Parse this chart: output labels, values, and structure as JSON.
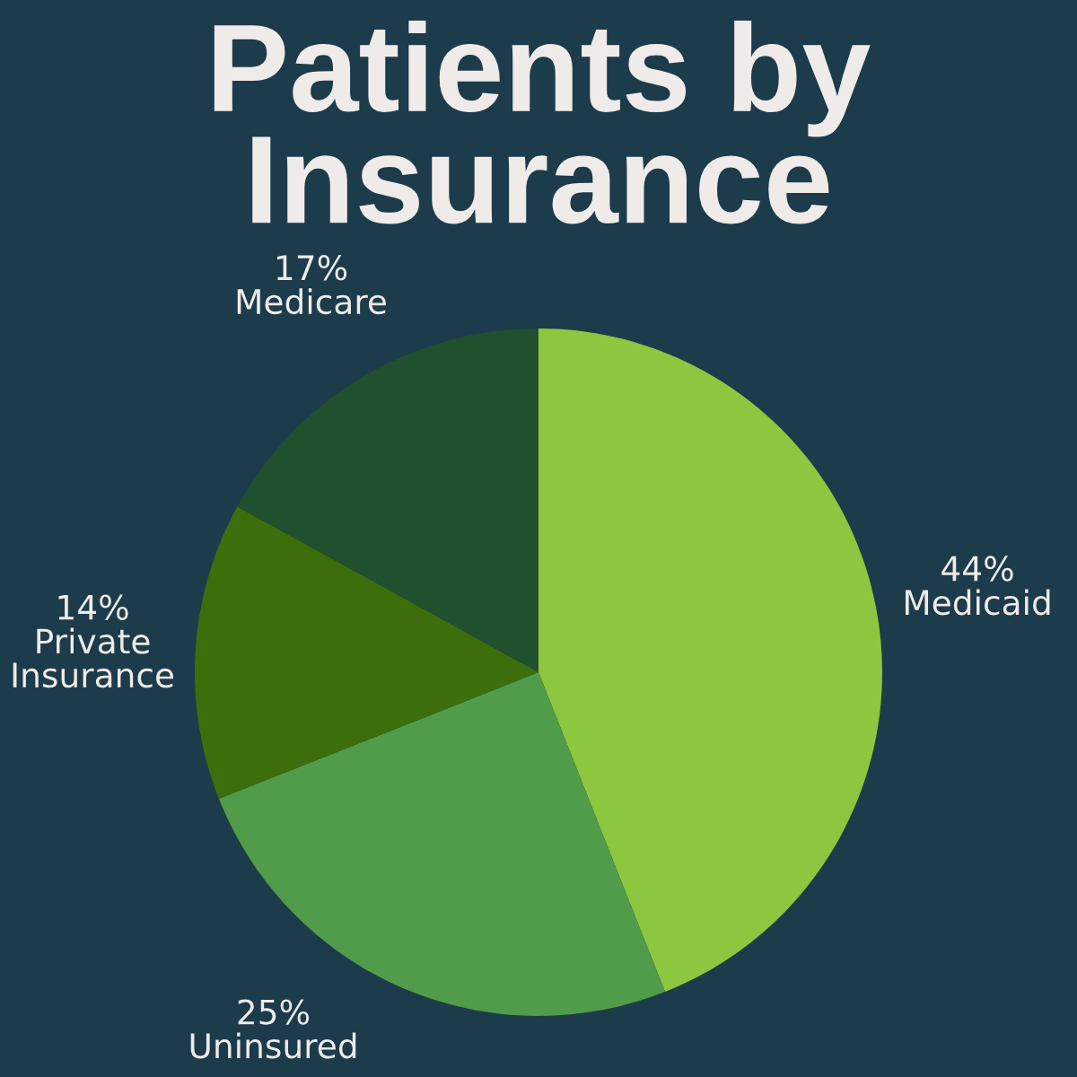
{
  "chart_data": {
    "type": "pie",
    "title": "Patients by\nInsurance",
    "categories": [
      "Medicaid",
      "Uninsured",
      "Private\nInsurance",
      "Medicare"
    ],
    "values": [
      44,
      25,
      14,
      17
    ],
    "colors": [
      "#8dc63f",
      "#519c4a",
      "#3d6e0c",
      "#20502d"
    ],
    "value_labels": [
      "44%",
      "25%",
      "14%",
      "17%"
    ]
  }
}
